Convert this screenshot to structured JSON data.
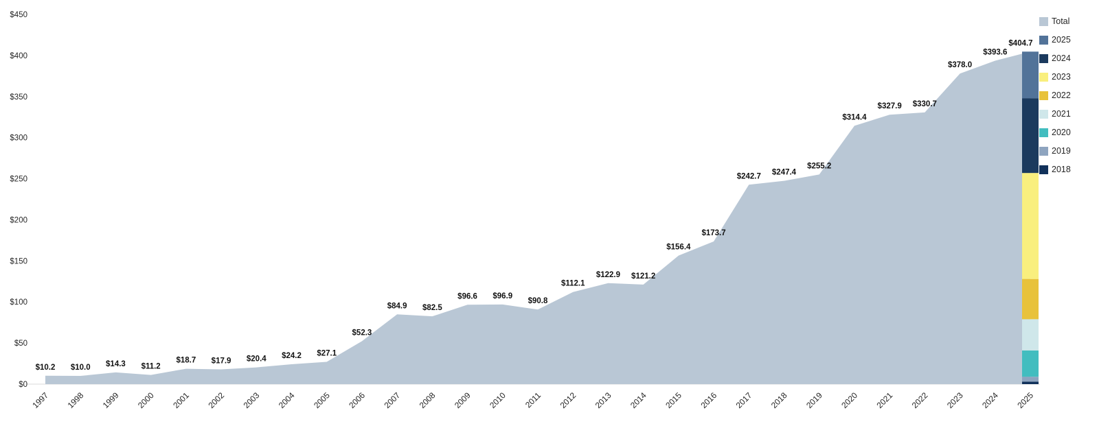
{
  "chart_data": {
    "type": "area",
    "title": "",
    "categories": [
      "1997",
      "1998",
      "1999",
      "2000",
      "2001",
      "2002",
      "2003",
      "2004",
      "2005",
      "2006",
      "2007",
      "2008",
      "2009",
      "2010",
      "2011",
      "2012",
      "2013",
      "2014",
      "2015",
      "2016",
      "2017",
      "2018",
      "2019",
      "2020",
      "2021",
      "2022",
      "2023",
      "2024",
      "2025"
    ],
    "values": [
      10.2,
      10.0,
      14.3,
      11.2,
      18.7,
      17.9,
      20.4,
      24.2,
      27.1,
      52.3,
      84.9,
      82.5,
      96.6,
      96.9,
      90.8,
      112.1,
      122.9,
      121.2,
      156.4,
      173.7,
      242.7,
      247.4,
      255.2,
      314.4,
      327.9,
      330.7,
      378.0,
      393.6,
      404.7
    ],
    "labels": [
      "$10.2",
      "$10.0",
      "$14.3",
      "$11.2",
      "$18.7",
      "$17.9",
      "$20.4",
      "$24.2",
      "$27.1",
      "$52.3",
      "$84.9",
      "$82.5",
      "$96.6",
      "$96.9",
      "$90.8",
      "$112.1",
      "$122.9",
      "$121.2",
      "$156.4",
      "$173.7",
      "$242.7",
      "$247.4",
      "$255.2",
      "$314.4",
      "$327.9",
      "$330.7",
      "$378.0",
      "$393.6",
      "$404.7"
    ],
    "xlabel": "",
    "ylabel": "",
    "ylim": [
      0,
      450
    ],
    "yticks": [
      0,
      50,
      100,
      150,
      200,
      250,
      300,
      350,
      400,
      450
    ],
    "ytick_labels": [
      "$0",
      "$50",
      "$100",
      "$150",
      "$200",
      "$250",
      "$300",
      "$350",
      "$400",
      "$450"
    ],
    "x_tick_rotation": 45,
    "grid": false,
    "legend_position": "right",
    "area_color": "#b9c7d5",
    "axis_line_color": "#d9d9d9",
    "label_color": "#111111",
    "tick_color": "#262626",
    "legend": [
      {
        "label": "Total",
        "color": "#b9c7d5"
      },
      {
        "label": "2025",
        "color": "#527399"
      },
      {
        "label": "2024",
        "color": "#1b3a5e"
      },
      {
        "label": "2023",
        "color": "#f9ef7e"
      },
      {
        "label": "2022",
        "color": "#e8c23b"
      },
      {
        "label": "2021",
        "color": "#cfe7ea"
      },
      {
        "label": "2020",
        "color": "#42bdbf"
      },
      {
        "label": "2019",
        "color": "#8ea4bf"
      },
      {
        "label": "2018",
        "color": "#11315a"
      }
    ],
    "stacked_bar": {
      "category": "2025",
      "total": 404.7,
      "segments_bottom_to_top": [
        {
          "label": "2018",
          "value": 3.0,
          "color": "#11315a"
        },
        {
          "label": "2019",
          "value": 6.0,
          "color": "#8ea4bf"
        },
        {
          "label": "2020",
          "value": 32.0,
          "color": "#42bdbf"
        },
        {
          "label": "2021",
          "value": 38.0,
          "color": "#cfe7ea"
        },
        {
          "label": "2022",
          "value": 49.0,
          "color": "#e8c23b"
        },
        {
          "label": "2023",
          "value": 129.0,
          "color": "#f9ef7e"
        },
        {
          "label": "2024",
          "value": 91.0,
          "color": "#1b3a5e"
        },
        {
          "label": "2025",
          "value": 56.7,
          "color": "#527399"
        }
      ]
    }
  }
}
